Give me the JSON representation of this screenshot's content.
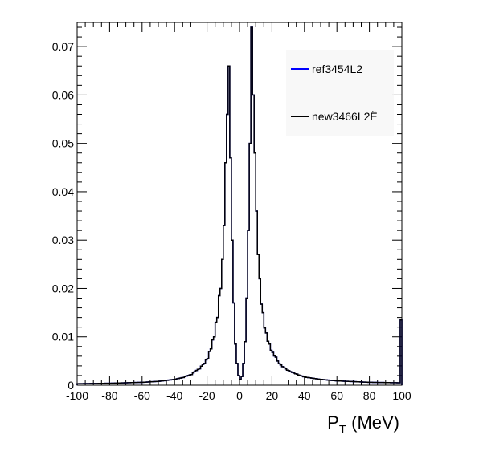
{
  "chart_data": {
    "type": "line",
    "style": "histogram-step",
    "title": "",
    "xlabel_main": "P",
    "xlabel_sub": "T",
    "xlabel_unit": " (MeV)",
    "ylabel": "",
    "xlim": [
      -100,
      100
    ],
    "ylim": [
      0,
      0.075
    ],
    "grid": false,
    "legend_placement": "top-right",
    "x_ticks": [
      -100,
      -80,
      -60,
      -40,
      -20,
      0,
      20,
      40,
      60,
      80,
      100
    ],
    "x_tick_labels": [
      "-100",
      "-80",
      "-60",
      "-40",
      "-20",
      "0",
      "20",
      "40",
      "60",
      "80",
      "100"
    ],
    "y_ticks": [
      0,
      0.01,
      0.02,
      0.03,
      0.04,
      0.05,
      0.06,
      0.07
    ],
    "y_tick_labels": [
      "0",
      "0.01",
      "0.02",
      "0.03",
      "0.04",
      "0.05",
      "0.06",
      "0.07"
    ],
    "series": [
      {
        "name": "ref3454L2",
        "color": "#0000ff",
        "x": [
          -100,
          -80,
          -60,
          -50,
          -40,
          -35,
          -30,
          -25,
          -22,
          -20,
          -18,
          -16,
          -14,
          -12,
          -11,
          -10,
          -9,
          -8,
          -7,
          -6,
          -5,
          -4,
          -3,
          -2,
          -1,
          0,
          1,
          2,
          3,
          4,
          5,
          6,
          7,
          8,
          9,
          10,
          11,
          12,
          14,
          16,
          18,
          20,
          22,
          25,
          30,
          35,
          40,
          50,
          60,
          80,
          98,
          99,
          100
        ],
        "y": [
          0.0003,
          0.0004,
          0.0006,
          0.0008,
          0.0012,
          0.0016,
          0.0022,
          0.0034,
          0.0045,
          0.0055,
          0.0075,
          0.01,
          0.014,
          0.02,
          0.026,
          0.033,
          0.046,
          0.056,
          0.066,
          0.047,
          0.03,
          0.017,
          0.0085,
          0.0045,
          0.002,
          0.0012,
          0.0018,
          0.0045,
          0.009,
          0.018,
          0.032,
          0.05,
          0.074,
          0.06,
          0.048,
          0.036,
          0.027,
          0.022,
          0.015,
          0.0108,
          0.0085,
          0.0068,
          0.0058,
          0.0042,
          0.003,
          0.0023,
          0.0017,
          0.0012,
          0.0009,
          0.0006,
          0.0005,
          0.0135,
          0.0135
        ]
      },
      {
        "name": "new3466L2Ë",
        "color": "#000000",
        "x": [
          -100,
          -80,
          -60,
          -50,
          -40,
          -35,
          -30,
          -25,
          -22,
          -20,
          -18,
          -16,
          -14,
          -12,
          -11,
          -10,
          -9,
          -8,
          -7,
          -6,
          -5,
          -4,
          -3,
          -2,
          -1,
          0,
          1,
          2,
          3,
          4,
          5,
          6,
          7,
          8,
          9,
          10,
          11,
          12,
          14,
          16,
          18,
          20,
          22,
          25,
          30,
          35,
          40,
          50,
          60,
          80,
          98,
          99,
          100
        ],
        "y": [
          0.0003,
          0.0004,
          0.0006,
          0.0008,
          0.0012,
          0.0016,
          0.0022,
          0.0034,
          0.0045,
          0.0055,
          0.0075,
          0.01,
          0.014,
          0.02,
          0.026,
          0.033,
          0.046,
          0.056,
          0.066,
          0.047,
          0.03,
          0.017,
          0.0085,
          0.0045,
          0.002,
          0.0012,
          0.0018,
          0.0045,
          0.009,
          0.018,
          0.032,
          0.05,
          0.074,
          0.06,
          0.048,
          0.036,
          0.027,
          0.022,
          0.015,
          0.0108,
          0.0085,
          0.0068,
          0.0058,
          0.0042,
          0.003,
          0.0023,
          0.0017,
          0.0012,
          0.0009,
          0.0006,
          0.0005,
          0.0135,
          0.0135
        ]
      }
    ]
  }
}
